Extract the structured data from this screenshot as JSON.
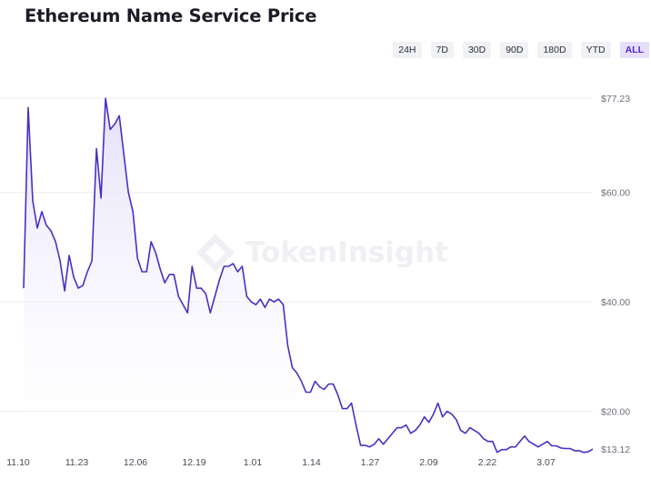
{
  "title": "Ethereum Name Service Price",
  "ranges": [
    {
      "label": "24H",
      "active": false
    },
    {
      "label": "7D",
      "active": false
    },
    {
      "label": "30D",
      "active": false
    },
    {
      "label": "90D",
      "active": false
    },
    {
      "label": "180D",
      "active": false
    },
    {
      "label": "YTD",
      "active": false
    },
    {
      "label": "ALL",
      "active": true
    }
  ],
  "watermark": "TokenInsight",
  "colors": {
    "line": "#4a2fc0",
    "fill_top": "#e4defa",
    "grid": "#ececf0",
    "accent": "#4f2bc4"
  },
  "chart_data": {
    "type": "area",
    "x_tick_labels": [
      "11.10",
      "11.23",
      "12.06",
      "12.19",
      "1.01",
      "1.14",
      "1.27",
      "2.09",
      "2.22",
      "3.07"
    ],
    "y_tick_labels": [
      "$20.00",
      "$40.00",
      "$60.00"
    ],
    "y_ticks": [
      20,
      40,
      60
    ],
    "y_max_label": "$77.23",
    "y_last_label": "$13.12",
    "ylim": [
      13.12,
      77.23
    ],
    "x_range_days": [
      0,
      125
    ],
    "grid": true,
    "series": [
      {
        "x": [
          0,
          1,
          2,
          3,
          4,
          5,
          6,
          7,
          8,
          9,
          10,
          11,
          12,
          13,
          14,
          15,
          16,
          17,
          18,
          19,
          20,
          21,
          22,
          23,
          24,
          25,
          26,
          27,
          28,
          29,
          30,
          31,
          32,
          33,
          34,
          35,
          36,
          37,
          38,
          39,
          40,
          41,
          42,
          43,
          44,
          45,
          46,
          47,
          48,
          49,
          50,
          51,
          52,
          53,
          54,
          55,
          56,
          57,
          58,
          59,
          60,
          61,
          62,
          63,
          64,
          65,
          66,
          67,
          68,
          69,
          70,
          71,
          72,
          73,
          74,
          75,
          76,
          77,
          78,
          79,
          80,
          81,
          82,
          83,
          84,
          85,
          86,
          87,
          88,
          89,
          90,
          91,
          92,
          93,
          94,
          95,
          96,
          97,
          98,
          99,
          100,
          101,
          102,
          103,
          104,
          105,
          106,
          107,
          108,
          109,
          110,
          111,
          112,
          113,
          114,
          115,
          116,
          117,
          118,
          119,
          120,
          121,
          122,
          123,
          124,
          125
        ],
        "values": [
          42.5,
          75.5,
          58.5,
          53.5,
          56.5,
          54.0,
          53.0,
          51.0,
          47.5,
          42.0,
          48.5,
          44.5,
          42.5,
          43.0,
          45.5,
          47.5,
          68.0,
          59.0,
          77.2,
          71.5,
          72.5,
          74.0,
          67.0,
          60.0,
          56.5,
          48.0,
          45.5,
          45.5,
          51.0,
          49.0,
          46.0,
          43.5,
          45.0,
          45.0,
          41.0,
          39.5,
          38.0,
          46.5,
          42.5,
          42.5,
          41.5,
          38.0,
          41.0,
          44.0,
          46.5,
          46.5,
          47.0,
          45.5,
          46.5,
          41.0,
          40.0,
          39.5,
          40.5,
          39.0,
          40.5,
          40.0,
          40.5,
          39.5,
          32.0,
          28.0,
          27.0,
          25.5,
          23.5,
          23.5,
          25.5,
          24.5,
          24.0,
          25.0,
          25.0,
          23.0,
          20.5,
          20.5,
          21.5,
          17.5,
          13.8,
          13.8,
          13.5,
          14.0,
          15.0,
          14.0,
          15.0,
          16.0,
          17.0,
          17.0,
          17.5,
          16.0,
          16.5,
          17.5,
          19.0,
          18.0,
          19.5,
          21.5,
          19.0,
          20.0,
          19.5,
          18.5,
          16.5,
          16.0,
          17.0,
          16.5,
          16.0,
          15.0,
          14.5,
          14.5,
          12.5,
          13.0,
          13.0,
          13.5,
          13.5,
          14.5,
          15.5,
          14.5,
          14.0,
          13.5,
          14.0,
          14.5,
          13.7,
          13.7,
          13.3,
          13.2,
          13.2,
          12.8,
          12.8,
          12.5,
          12.6,
          13.1
        ]
      }
    ]
  }
}
